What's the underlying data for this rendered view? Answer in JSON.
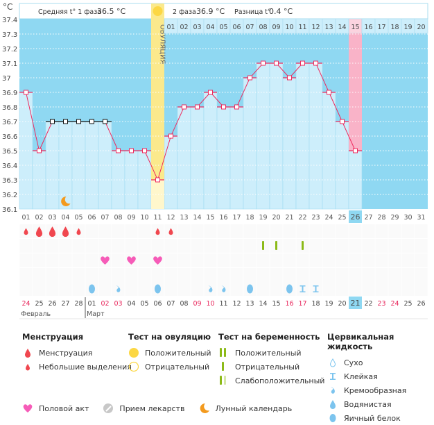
{
  "header": {
    "phase1_label": "Средняя t° 1 фаза",
    "phase1_value": "36.5 °C",
    "phase2_label": "2 фаза",
    "phase2_value": "36.9 °C",
    "diff_label": "Разница t°",
    "diff_value": "0.4 °C",
    "ovulation_label": "ОВУЛЯЦИЯ"
  },
  "chart_data": {
    "type": "line",
    "ylabel": "°C",
    "ylim": [
      36.1,
      37.4
    ],
    "yticks": [
      "37.4",
      "37.3",
      "37.2",
      "37.1",
      "37",
      "36.9",
      "36.8",
      "36.7",
      "36.6",
      "36.5",
      "36.4",
      "36.3",
      "36.2",
      "36.1"
    ],
    "cycle_days": [
      "01",
      "02",
      "03",
      "04",
      "05",
      "06",
      "07",
      "08",
      "09",
      "10",
      "11",
      "12",
      "13",
      "14",
      "15",
      "16",
      "17",
      "18",
      "19",
      "20",
      "21",
      "22",
      "23",
      "24",
      "25",
      "26",
      "27",
      "28",
      "29",
      "30",
      "31"
    ],
    "temperatures": [
      36.9,
      36.5,
      36.7,
      36.7,
      36.7,
      36.7,
      36.7,
      36.5,
      36.5,
      36.5,
      36.3,
      36.6,
      36.8,
      36.8,
      36.9,
      36.8,
      36.8,
      37.0,
      37.1,
      37.1,
      37.0,
      37.1,
      37.1,
      36.9,
      36.7,
      36.5
    ],
    "black_marker_days": [
      3,
      4,
      5,
      6,
      7
    ],
    "ovulation_day": 11,
    "current_day": 26,
    "next_cycle_days": [
      "01",
      "02",
      "03",
      "04",
      "05",
      "06",
      "07",
      "08",
      "09",
      "10",
      "11",
      "12",
      "13",
      "14",
      "15",
      "16",
      "17",
      "18",
      "19",
      "20"
    ],
    "next_cycle_start_day": 12,
    "next_cycle_highlight": "15",
    "moon_day": 4,
    "colors": {
      "plot_bg": "#8fd8f2",
      "bar": "#cdeefb",
      "line": "#ee2a5e",
      "ovulation": "#fbe98c",
      "highlight": "#f9b3c8",
      "weekend": "#e8245a"
    }
  },
  "events": {
    "menstruation": [
      {
        "col": 1,
        "size": "small"
      },
      {
        "col": 2,
        "size": "big"
      },
      {
        "col": 3,
        "size": "big"
      },
      {
        "col": 4,
        "size": "big"
      },
      {
        "col": 5,
        "size": "small"
      },
      {
        "col": 11,
        "size": "small"
      },
      {
        "col": 12,
        "size": "small"
      }
    ],
    "pregnancy_test": [
      {
        "col": 19,
        "result": "negative"
      },
      {
        "col": 20,
        "result": "negative"
      },
      {
        "col": 22,
        "result": "negative"
      }
    ],
    "intercourse": [
      7,
      9,
      11
    ],
    "cervical": [
      {
        "col": 6,
        "type": "egg_white"
      },
      {
        "col": 8,
        "type": "creamy"
      },
      {
        "col": 11,
        "type": "egg_white"
      },
      {
        "col": 15,
        "type": "creamy"
      },
      {
        "col": 16,
        "type": "creamy"
      },
      {
        "col": 18,
        "type": "egg_white"
      },
      {
        "col": 21,
        "type": "egg_white"
      },
      {
        "col": 22,
        "type": "sticky"
      },
      {
        "col": 23,
        "type": "sticky"
      }
    ]
  },
  "dates": [
    "24",
    "25",
    "26",
    "27",
    "28",
    "01",
    "02",
    "03",
    "04",
    "05",
    "06",
    "07",
    "08",
    "09",
    "10",
    "11",
    "12",
    "13",
    "14",
    "15",
    "16",
    "17",
    "18",
    "19",
    "20",
    "21",
    "22",
    "23",
    "24",
    "25",
    "26"
  ],
  "weekend_dates_cols": [
    1,
    7,
    8,
    14,
    15,
    21,
    22,
    28,
    29
  ],
  "today_col": 26,
  "months": [
    {
      "label": "Февраль",
      "col": 1
    },
    {
      "label": "Март",
      "col": 6
    }
  ],
  "legend": {
    "menstruation": {
      "title": "Менструация",
      "items": [
        "Менструация",
        "Небольшие выделения"
      ]
    },
    "ovulation_test": {
      "title": "Тест на овуляцию",
      "items": [
        "Положительный",
        "Отрицательный"
      ]
    },
    "pregnancy_test": {
      "title": "Тест на беременность",
      "items": [
        "Положительный",
        "Отрицательный",
        "Слабоположительный"
      ]
    },
    "cervical": {
      "title": "Цервикальная жидкость",
      "items": [
        "Сухо",
        "Клейкая",
        "Кремообразная",
        "Водянистая",
        "Яичный белок"
      ]
    },
    "other": [
      "Половой акт",
      "Прием лекарств",
      "Лунный календарь"
    ]
  }
}
